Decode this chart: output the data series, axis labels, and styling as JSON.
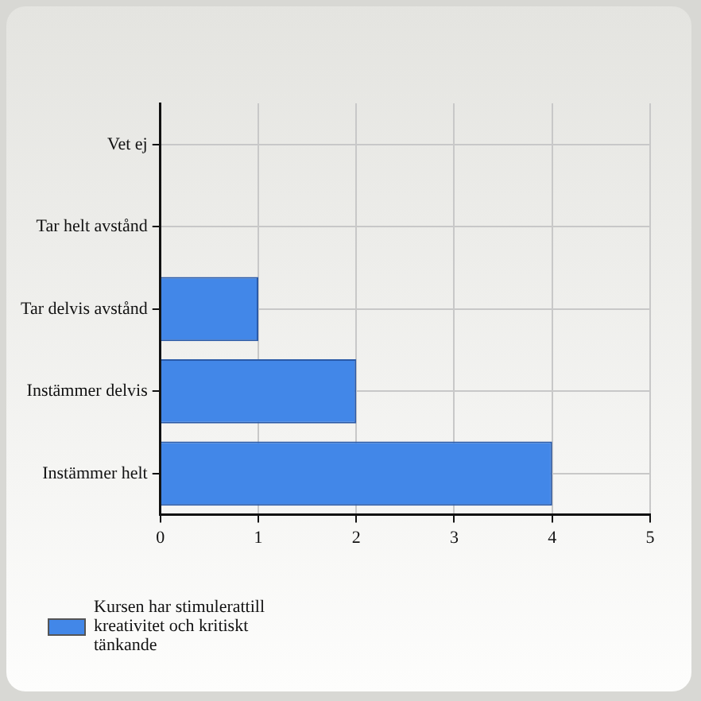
{
  "chart_data": {
    "type": "bar",
    "orientation": "horizontal",
    "categories": [
      "Vet ej",
      "Tar helt avstånd",
      "Tar delvis avstånd",
      "Instämmer delvis",
      "Instämmer helt"
    ],
    "series": [
      {
        "name": "Kursen har stimulerattill kreativitet och kritiskt tänkande",
        "color": "#4287e8",
        "values": [
          0,
          0,
          1,
          2,
          4
        ]
      }
    ],
    "xlim": [
      0,
      5
    ],
    "xticks": [
      0,
      1,
      2,
      3,
      4,
      5
    ],
    "grid": true,
    "legend": "bottom left"
  }
}
